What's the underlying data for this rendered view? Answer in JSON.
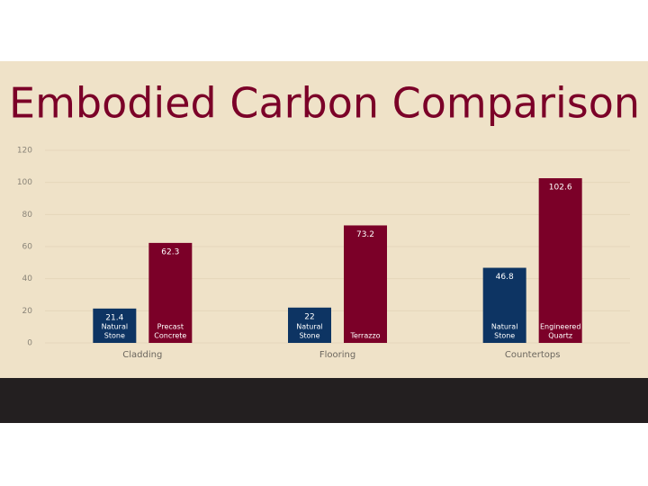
{
  "chart_data": {
    "type": "bar",
    "title": "Embodied Carbon Comparison",
    "categories": [
      "Cladding",
      "Flooring",
      "Countertops"
    ],
    "series": [
      {
        "color": "#0d3463",
        "values": [
          21.4,
          22,
          46.8
        ],
        "bar_labels": [
          [
            "Natural",
            "Stone"
          ],
          [
            "Natural",
            "Stone"
          ],
          [
            "Natural",
            "Stone"
          ]
        ]
      },
      {
        "color": "#7b0028",
        "values": [
          62.3,
          73.2,
          102.6
        ],
        "bar_labels": [
          [
            "Precast",
            "Concrete"
          ],
          [
            "Terrazzo"
          ],
          [
            "Engineered",
            "Quartz"
          ]
        ]
      }
    ],
    "ylim": [
      0,
      120
    ],
    "yticks": [
      0,
      20,
      40,
      60,
      80,
      100,
      120
    ],
    "grid": true
  }
}
